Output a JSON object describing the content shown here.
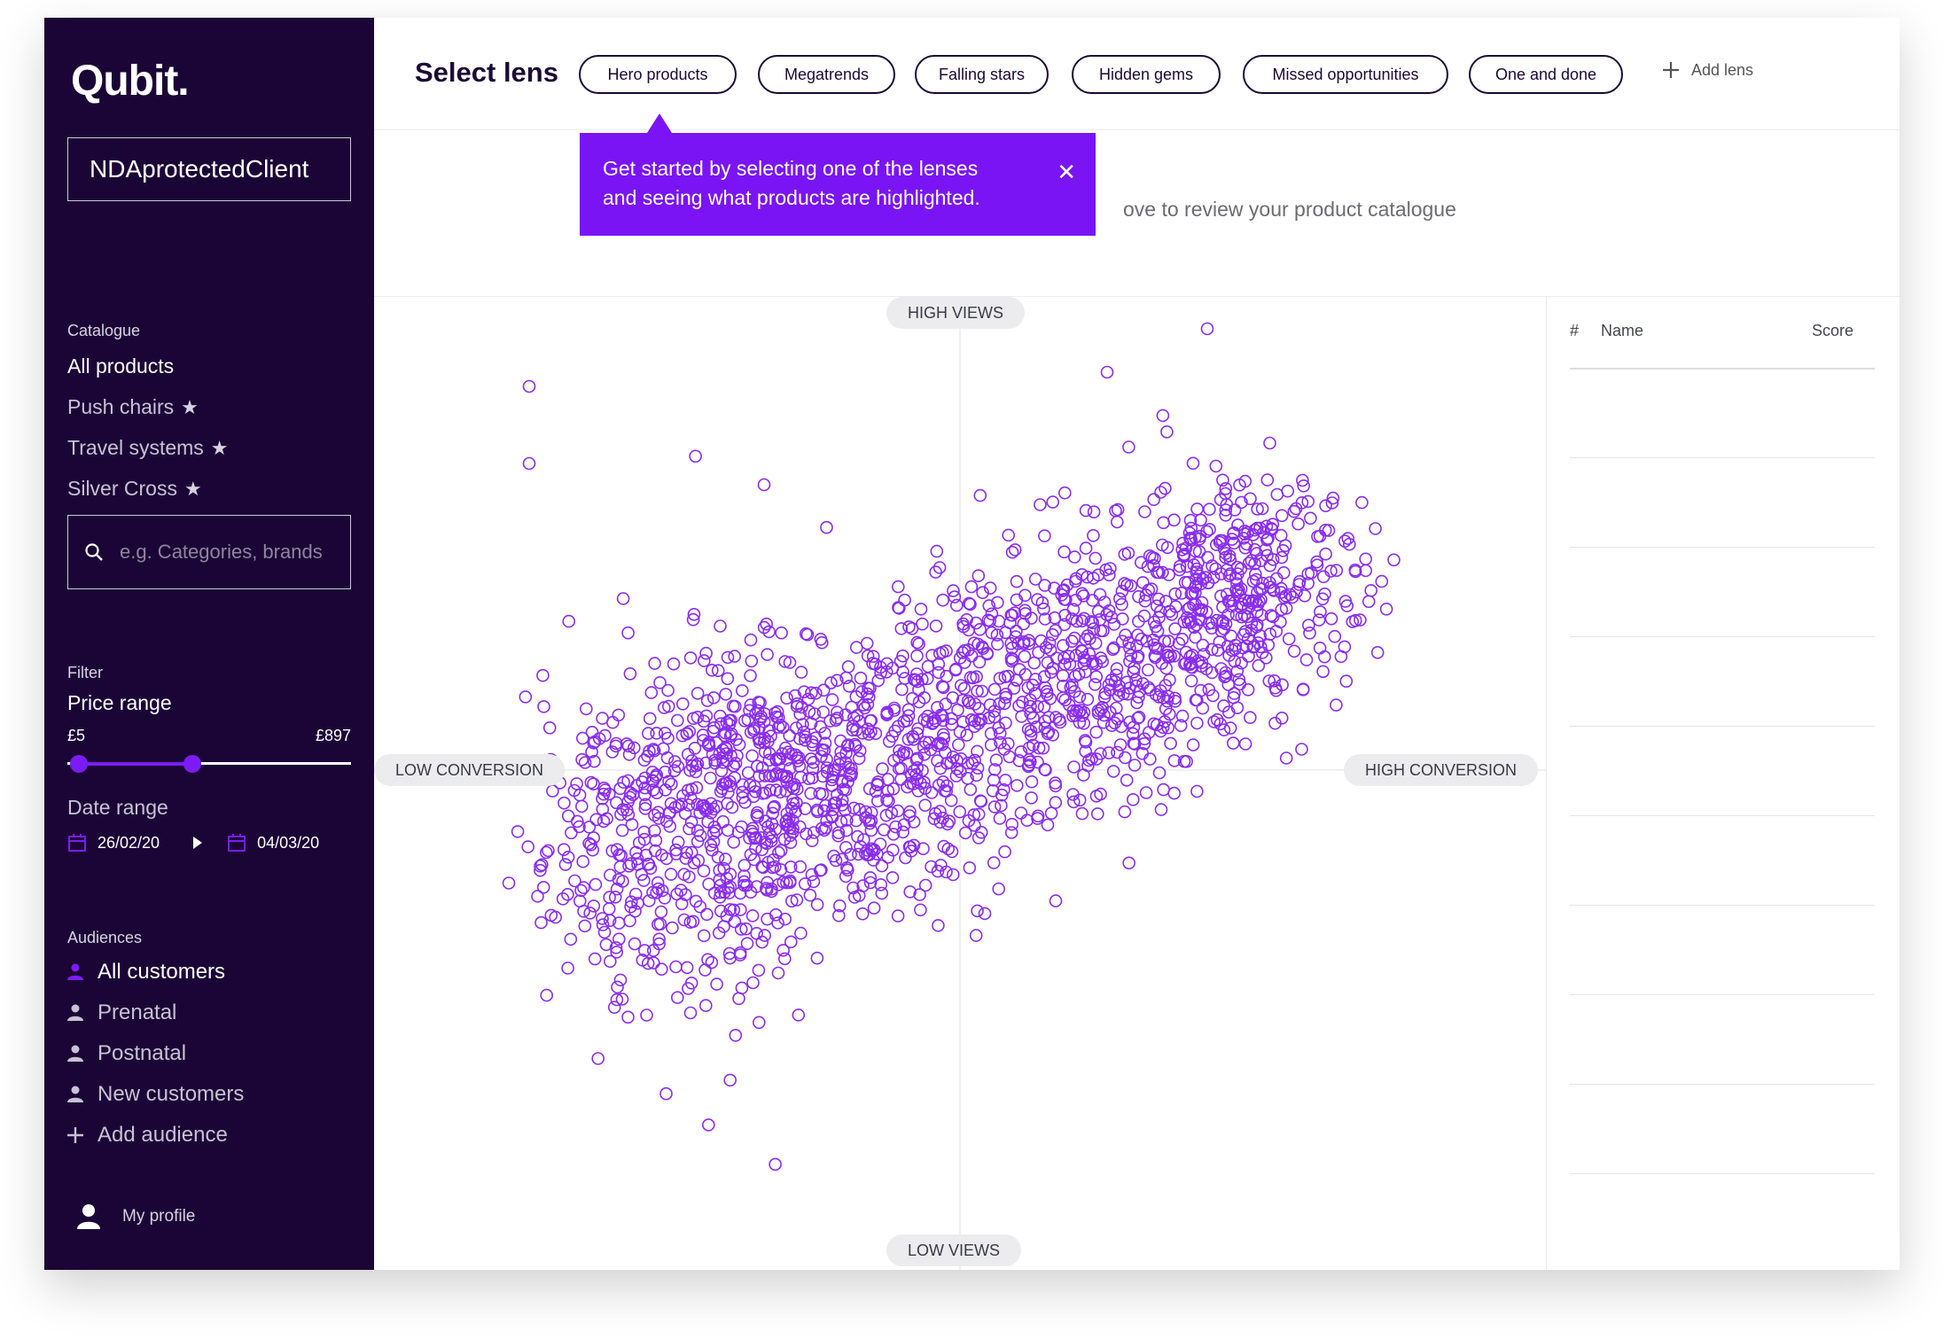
{
  "sidebar": {
    "logo": "Qubit.",
    "client": "NDAprotectedClient",
    "catalogue_label": "Catalogue",
    "catalogue_items": [
      {
        "label": "All products",
        "active": true,
        "starred": false
      },
      {
        "label": "Push chairs",
        "active": false,
        "starred": true
      },
      {
        "label": "Travel systems",
        "active": false,
        "starred": true
      },
      {
        "label": "Silver Cross",
        "active": false,
        "starred": true
      }
    ],
    "search_placeholder": "e.g. Categories, brands",
    "filter_label": "Filter",
    "price_range_label": "Price range",
    "price_min": "£5",
    "price_max": "£897",
    "price_slider": {
      "low": 0.04,
      "high": 0.44
    },
    "date_range_label": "Date range",
    "date_from": "26/02/20",
    "date_to": "04/03/20",
    "audiences_label": "Audiences",
    "audiences": [
      {
        "label": "All customers",
        "active": true
      },
      {
        "label": "Prenatal",
        "active": false
      },
      {
        "label": "Postnatal",
        "active": false
      },
      {
        "label": "New customers",
        "active": false
      }
    ],
    "add_audience": "Add audience",
    "profile": "My profile"
  },
  "header": {
    "title": "Select lens",
    "lenses": [
      "Hero products",
      "Megatrends",
      "Falling stars",
      "Hidden gems",
      "Missed opportunities",
      "One and done"
    ],
    "add_lens": "Add lens"
  },
  "info": {
    "text": "ove to review your product catalogue"
  },
  "tooltip": {
    "line1": "Get started by selecting one of the lenses",
    "line2": "and seeing what products are highlighted."
  },
  "plot": {
    "top_label": "HIGH VIEWS",
    "bottom_label": "LOW VIEWS",
    "left_label": "LOW CONVERSION",
    "right_label": "HIGH CONVERSION"
  },
  "table": {
    "col_num": "#",
    "col_name": "Name",
    "col_score": "Score"
  },
  "colors": {
    "sidebar_bg": "#1b0536",
    "accent": "#7a14f5",
    "point_stroke": "#8a2cf0"
  },
  "icons": {
    "search": "search-icon",
    "star": "star-icon",
    "calendar": "calendar-icon",
    "play": "play-arrow-icon",
    "user": "user-icon",
    "close": "close-icon",
    "plus": "plus-icon"
  }
}
